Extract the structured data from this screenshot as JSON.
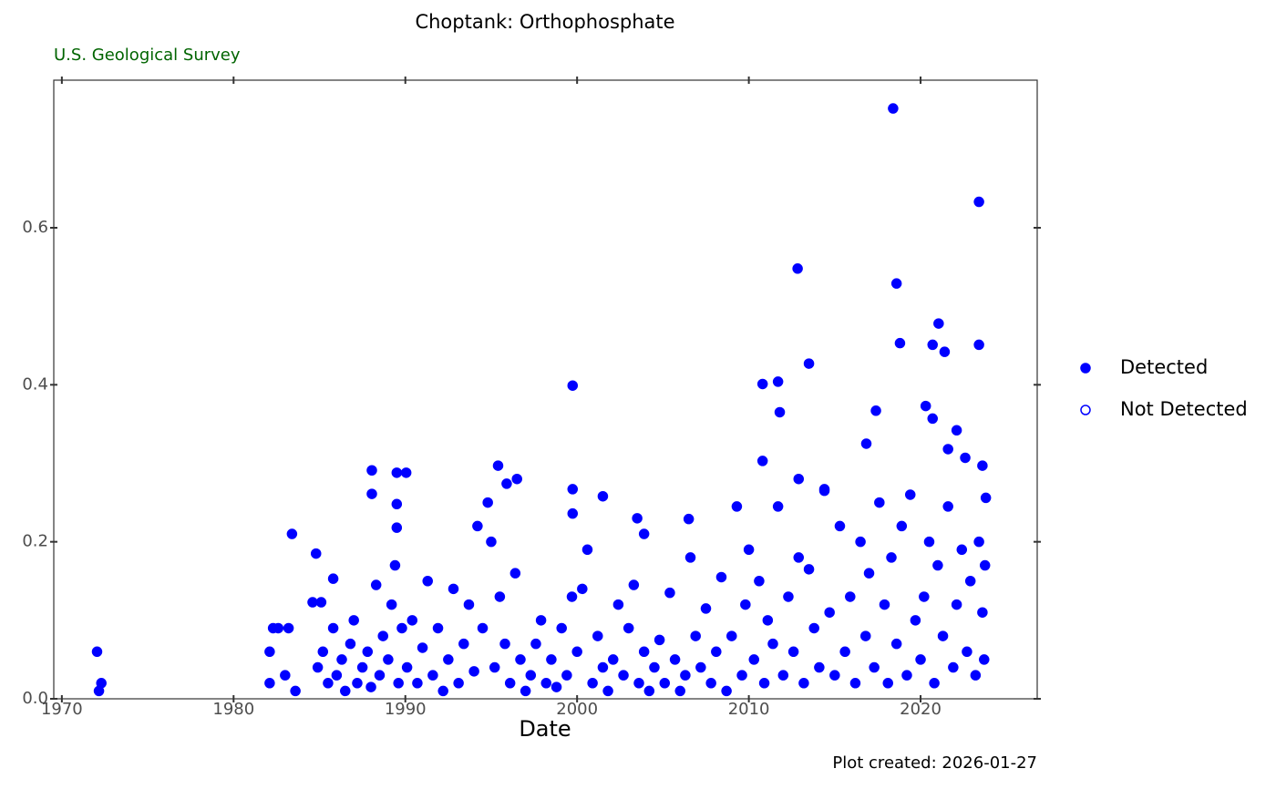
{
  "chart_data": {
    "type": "scatter",
    "title": "Choptank: Orthophosphate",
    "subtitle": "U.S. Geological Survey",
    "xlabel": "Date",
    "caption": "Plot created: 2026-01-27",
    "xlim": [
      1969.53,
      2026.79
    ],
    "ylim": [
      0,
      0.788
    ],
    "xticks": [
      1970,
      1980,
      1990,
      2000,
      2010,
      2020
    ],
    "yticks": [
      {
        "value": 0,
        "label": "0.0"
      },
      0.2,
      0.4,
      0.6
    ],
    "grid": false,
    "legend": "right",
    "series": [
      {
        "name": "Detected",
        "color": "#0000ff",
        "filled": true,
        "x": [
          1972.05,
          1972.16,
          1972.3,
          1982.1,
          1982.3,
          1982.6,
          1983.2,
          1983.4,
          1982.1,
          1983.6,
          1983.0,
          1984.6,
          1984.8,
          1985.1,
          1985.8,
          1988.05,
          1988.05,
          1989.5,
          1990.05,
          1989.5,
          1989.5,
          1995.4,
          1996.5,
          1995.9,
          1999.74,
          1999.74,
          1999.74,
          2001.5,
          2003.5,
          2003.9,
          2006.5,
          2010.8,
          2011.7,
          2011.8,
          2010.8,
          2012.84,
          2013.5,
          2012.9,
          2014.4,
          2016.84,
          2017.4,
          2018.4,
          2018.6,
          2018.8,
          2020.3,
          2020.7,
          2020.7,
          2021.05,
          2021.4,
          2023.4,
          2023.4,
          2023.6,
          2023.8,
          2021.6,
          2022.1,
          2022.6,
          1984.9,
          1985.2,
          1985.5,
          1985.8,
          1986.0,
          1986.3,
          1986.5,
          1986.8,
          1987.0,
          1987.2,
          1987.5,
          1987.8,
          1988.0,
          1988.3,
          1988.5,
          1988.7,
          1989.0,
          1989.2,
          1989.4,
          1989.6,
          1989.8,
          1990.1,
          1990.4,
          1990.7,
          1991.0,
          1991.3,
          1991.6,
          1991.9,
          1992.2,
          1992.5,
          1992.8,
          1993.1,
          1993.4,
          1993.7,
          1994.0,
          1994.2,
          1994.5,
          1994.8,
          1995.0,
          1995.2,
          1995.5,
          1995.8,
          1996.1,
          1996.4,
          1996.7,
          1997.0,
          1997.3,
          1997.6,
          1997.9,
          1998.2,
          1998.5,
          1998.8,
          1999.1,
          1999.4,
          1999.7,
          2000.0,
          2000.3,
          2000.6,
          2000.9,
          2001.2,
          2001.5,
          2001.8,
          2002.1,
          2002.4,
          2002.7,
          2003.0,
          2003.3,
          2003.6,
          2003.9,
          2004.2,
          2004.5,
          2004.8,
          2005.1,
          2005.4,
          2005.7,
          2006.0,
          2006.3,
          2006.6,
          2006.9,
          2007.2,
          2007.5,
          2007.8,
          2008.1,
          2008.4,
          2008.7,
          2009.0,
          2009.3,
          2009.6,
          2009.8,
          2010.0,
          2010.3,
          2010.6,
          2010.9,
          2011.1,
          2011.4,
          2011.7,
          2012.0,
          2012.3,
          2012.6,
          2012.9,
          2013.2,
          2013.5,
          2013.8,
          2014.1,
          2014.4,
          2014.7,
          2015.0,
          2015.3,
          2015.6,
          2015.9,
          2016.2,
          2016.5,
          2016.8,
          2017.0,
          2017.3,
          2017.6,
          2017.9,
          2018.1,
          2018.3,
          2018.6,
          2018.9,
          2019.2,
          2019.4,
          2019.7,
          2020.0,
          2020.2,
          2020.5,
          2020.8,
          2021.0,
          2021.3,
          2021.6,
          2021.9,
          2022.1,
          2022.4,
          2022.7,
          2022.9,
          2023.2,
          2023.4,
          2023.6,
          2023.7,
          2023.75
        ],
        "values": [
          0.06,
          0.01,
          0.02,
          0.06,
          0.09,
          0.09,
          0.09,
          0.21,
          0.02,
          0.01,
          0.03,
          0.123,
          0.185,
          0.123,
          0.153,
          0.291,
          0.261,
          0.288,
          0.288,
          0.248,
          0.218,
          0.297,
          0.28,
          0.274,
          0.399,
          0.267,
          0.236,
          0.258,
          0.23,
          0.21,
          0.229,
          0.401,
          0.404,
          0.365,
          0.303,
          0.548,
          0.427,
          0.28,
          0.267,
          0.325,
          0.367,
          0.752,
          0.529,
          0.453,
          0.373,
          0.357,
          0.451,
          0.478,
          0.442,
          0.633,
          0.451,
          0.297,
          0.256,
          0.318,
          0.342,
          0.307,
          0.04,
          0.06,
          0.02,
          0.09,
          0.03,
          0.05,
          0.01,
          0.07,
          0.1,
          0.02,
          0.04,
          0.06,
          0.015,
          0.145,
          0.03,
          0.08,
          0.05,
          0.12,
          0.17,
          0.02,
          0.09,
          0.04,
          0.1,
          0.02,
          0.065,
          0.15,
          0.03,
          0.09,
          0.01,
          0.05,
          0.14,
          0.02,
          0.07,
          0.12,
          0.035,
          0.22,
          0.09,
          0.25,
          0.2,
          0.04,
          0.13,
          0.07,
          0.02,
          0.16,
          0.05,
          0.01,
          0.03,
          0.07,
          0.1,
          0.02,
          0.05,
          0.015,
          0.09,
          0.03,
          0.13,
          0.06,
          0.14,
          0.19,
          0.02,
          0.08,
          0.04,
          0.01,
          0.05,
          0.12,
          0.03,
          0.09,
          0.145,
          0.02,
          0.06,
          0.01,
          0.04,
          0.075,
          0.02,
          0.135,
          0.05,
          0.01,
          0.03,
          0.18,
          0.08,
          0.04,
          0.115,
          0.02,
          0.06,
          0.155,
          0.01,
          0.08,
          0.245,
          0.03,
          0.12,
          0.19,
          0.05,
          0.15,
          0.02,
          0.1,
          0.07,
          0.245,
          0.03,
          0.13,
          0.06,
          0.18,
          0.02,
          0.165,
          0.09,
          0.04,
          0.265,
          0.11,
          0.03,
          0.22,
          0.06,
          0.13,
          0.02,
          0.2,
          0.08,
          0.16,
          0.04,
          0.25,
          0.12,
          0.02,
          0.18,
          0.07,
          0.22,
          0.03,
          0.26,
          0.1,
          0.05,
          0.13,
          0.2,
          0.02,
          0.17,
          0.08,
          0.245,
          0.04,
          0.12,
          0.19,
          0.06,
          0.15,
          0.03,
          0.2,
          0.11,
          0.05,
          0.17
        ]
      },
      {
        "name": "Not Detected",
        "color": "#0000ff",
        "filled": false,
        "x": [],
        "values": []
      }
    ]
  }
}
